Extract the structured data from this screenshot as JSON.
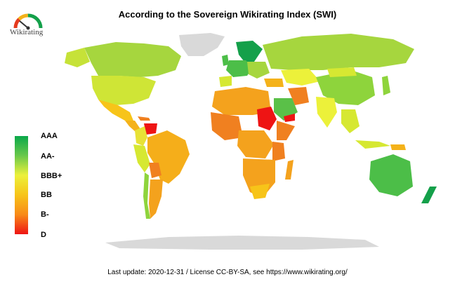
{
  "title": "According to the Sovereign Wikirating Index (SWI)",
  "logo": {
    "text": "Wikirating",
    "icon": "gauge-icon"
  },
  "legend": {
    "labels": [
      "AAA",
      "AA-",
      "BBB+",
      "BB",
      "B-",
      "D"
    ],
    "colors": [
      "#0aa84a",
      "#69c84a",
      "#ecf13a",
      "#f7c419",
      "#f88a17",
      "#ee1414"
    ]
  },
  "footer": "Last update: 2020-12-31  /  License CC-BY-SA, see https://www.wikirating.org/",
  "colors": {
    "unrated": "#d9d9d9",
    "aaa": "#14a04a",
    "aa": "#4cbe48",
    "a": "#8ed43c",
    "bbb": "#d6e832",
    "bbb_low": "#ecf13a",
    "bb": "#f7c419",
    "b": "#f4a21d",
    "b_low": "#f08020",
    "ccc": "#ec5a1a",
    "d": "#ee1414"
  }
}
